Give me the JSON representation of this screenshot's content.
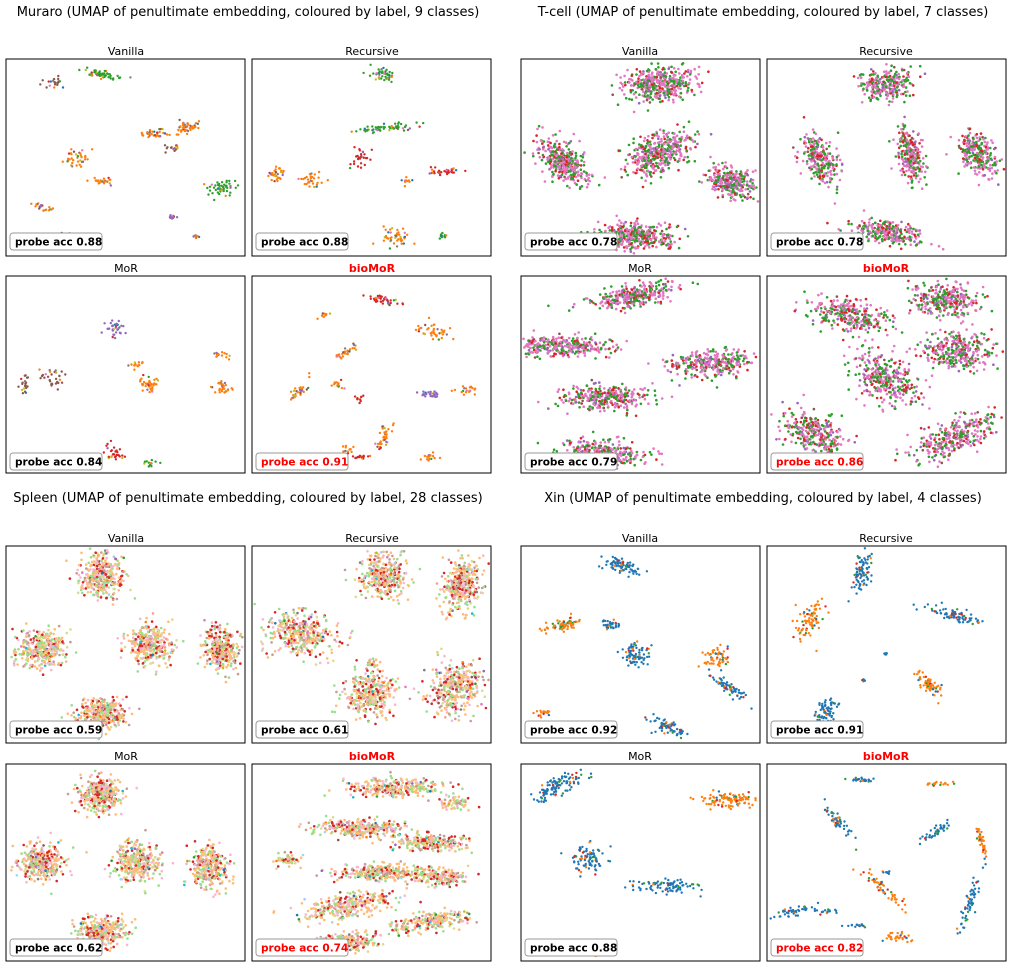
{
  "colors": {
    "class_palette": [
      "#1f77b4",
      "#ff7f0e",
      "#2ca02c",
      "#d62728",
      "#9467bd",
      "#8c564b",
      "#e377c2",
      "#7f7f7f",
      "#bcbd22",
      "#17becf",
      "#aec7e8",
      "#ffbb78",
      "#98df8a",
      "#ff9896",
      "#c5b0d5",
      "#c49c94",
      "#f7b6d2",
      "#c7c7c7",
      "#dbdb8d",
      "#9edae5"
    ],
    "highlight": "#ff0000",
    "frame": "#000000",
    "badge_border": "#999999"
  },
  "chart_data": [
    {
      "type": "scatter",
      "dataset": "Muraro",
      "title": "Muraro  (UMAP of penultimate embedding, coloured by label, 9 classes)",
      "panels": [
        {
          "title": "Vanilla",
          "badge": "probe acc 0.88",
          "probe_acc": 0.88,
          "highlight": false
        },
        {
          "title": "Recursive",
          "badge": "probe acc 0.88",
          "probe_acc": 0.88,
          "highlight": false
        },
        {
          "title": "MoR",
          "badge": "probe acc 0.84",
          "probe_acc": 0.84,
          "highlight": false
        },
        {
          "title": "bioMoR",
          "badge": "probe acc 0.91",
          "probe_acc": 0.91,
          "highlight": true
        }
      ]
    },
    {
      "type": "scatter",
      "dataset": "T-cell",
      "title": "T-cell  (UMAP of penultimate embedding, coloured by label, 7 classes)",
      "panels": [
        {
          "title": "Vanilla",
          "badge": "probe acc 0.78",
          "probe_acc": 0.78,
          "highlight": false
        },
        {
          "title": "Recursive",
          "badge": "probe acc 0.78",
          "probe_acc": 0.78,
          "highlight": false
        },
        {
          "title": "MoR",
          "badge": "probe acc 0.79",
          "probe_acc": 0.79,
          "highlight": false
        },
        {
          "title": "bioMoR",
          "badge": "probe acc 0.86",
          "probe_acc": 0.86,
          "highlight": true
        }
      ]
    },
    {
      "type": "scatter",
      "dataset": "Spleen",
      "title": "Spleen  (UMAP of penultimate embedding, coloured by label, 28 classes)",
      "panels": [
        {
          "title": "Vanilla",
          "badge": "probe acc 0.59",
          "probe_acc": 0.59,
          "highlight": false
        },
        {
          "title": "Recursive",
          "badge": "probe acc 0.61",
          "probe_acc": 0.61,
          "highlight": false
        },
        {
          "title": "MoR",
          "badge": "probe acc 0.62",
          "probe_acc": 0.62,
          "highlight": false
        },
        {
          "title": "bioMoR",
          "badge": "probe acc 0.74",
          "probe_acc": 0.74,
          "highlight": true
        }
      ]
    },
    {
      "type": "scatter",
      "dataset": "Xin",
      "title": "Xin  (UMAP of penultimate embedding, coloured by label, 4 classes)",
      "panels": [
        {
          "title": "Vanilla",
          "badge": "probe acc 0.92",
          "probe_acc": 0.92,
          "highlight": false
        },
        {
          "title": "Recursive",
          "badge": "probe acc 0.91",
          "probe_acc": 0.91,
          "highlight": false
        },
        {
          "title": "MoR",
          "badge": "probe acc 0.88",
          "probe_acc": 0.88,
          "highlight": false
        },
        {
          "title": "bioMoR",
          "badge": "probe acc 0.82",
          "probe_acc": 0.82,
          "highlight": true
        }
      ]
    }
  ]
}
